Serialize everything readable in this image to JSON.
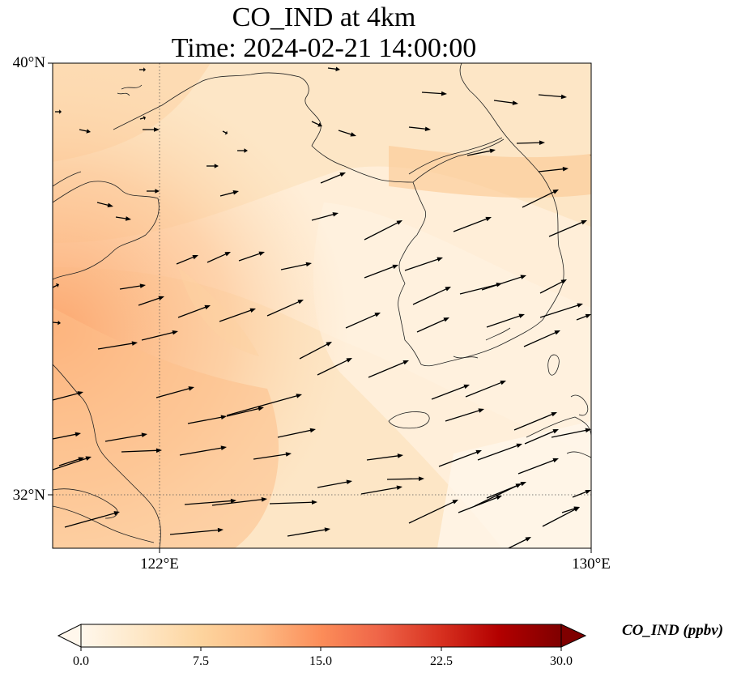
{
  "title": {
    "line1": "CO_IND at 4km",
    "line2": "Time: 2024-02-21 14:00:00"
  },
  "map": {
    "lat_labels": [
      "40°N",
      "32°N"
    ],
    "lon_labels": [
      "122°E",
      "130°E"
    ],
    "extent": {
      "lon": [
        120.4,
        130.0
      ],
      "lat": [
        31.0,
        40.0
      ]
    },
    "gridline_lon": 122,
    "gridline_lat": 32,
    "variable": "CO_IND",
    "has_wind_vectors": true,
    "has_coastlines": true
  },
  "colorbar": {
    "label": "CO_IND (ppbv)",
    "ticks": [
      "0.0",
      "7.5",
      "15.0",
      "22.5",
      "30.0"
    ],
    "min": 0,
    "max": 30,
    "colormap": "OrRd",
    "colors": [
      "#fff7ec",
      "#fee8c8",
      "#fdd49e",
      "#fdbb84",
      "#fc8d59",
      "#ef6548",
      "#d7301f",
      "#b30000",
      "#7f0000"
    ]
  }
}
